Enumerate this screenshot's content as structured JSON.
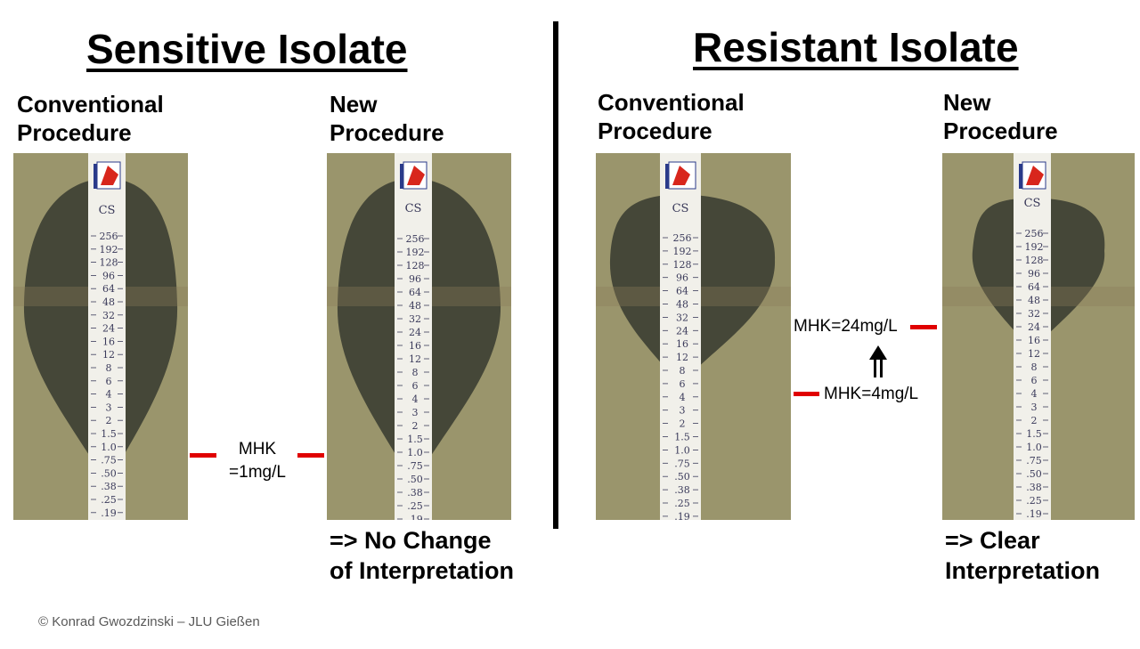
{
  "left": {
    "title": "Sensitive Isolate",
    "conventional_line1": "Conventional",
    "conventional_line2": "Procedure",
    "new_line1": "New",
    "new_line2": "Procedure",
    "mhk_line1": "MHK",
    "mhk_line2": "=1mg/L",
    "conclusion_line1": "=> No Change",
    "conclusion_line2": "of Interpretation"
  },
  "right": {
    "title": "Resistant Isolate",
    "conventional_line1": "Conventional",
    "conventional_line2": "Procedure",
    "new_line1": "New",
    "new_line2": "Procedure",
    "mhk_high": "MHK=24mg/L",
    "mhk_low": "MHK=4mg/L",
    "conclusion_line1": "=> Clear",
    "conclusion_line2": "Interpretation"
  },
  "strip": {
    "code": "CS",
    "scale": [
      "256",
      "192",
      "128",
      "96",
      "64",
      "48",
      "32",
      "24",
      "16",
      "12",
      "8",
      "6",
      "4",
      "3",
      "2",
      "1.5",
      "1.0",
      ".75",
      ".50",
      ".38",
      ".25",
      ".19"
    ]
  },
  "credit": "© Konrad Gwozdzinski – JLU Gießen",
  "colors": {
    "agar": "#9a956c",
    "inhibition_zone": "#454738",
    "strip": "#f1f0ea",
    "mark": "#e00000",
    "strip_text": "#3a3a5a"
  }
}
